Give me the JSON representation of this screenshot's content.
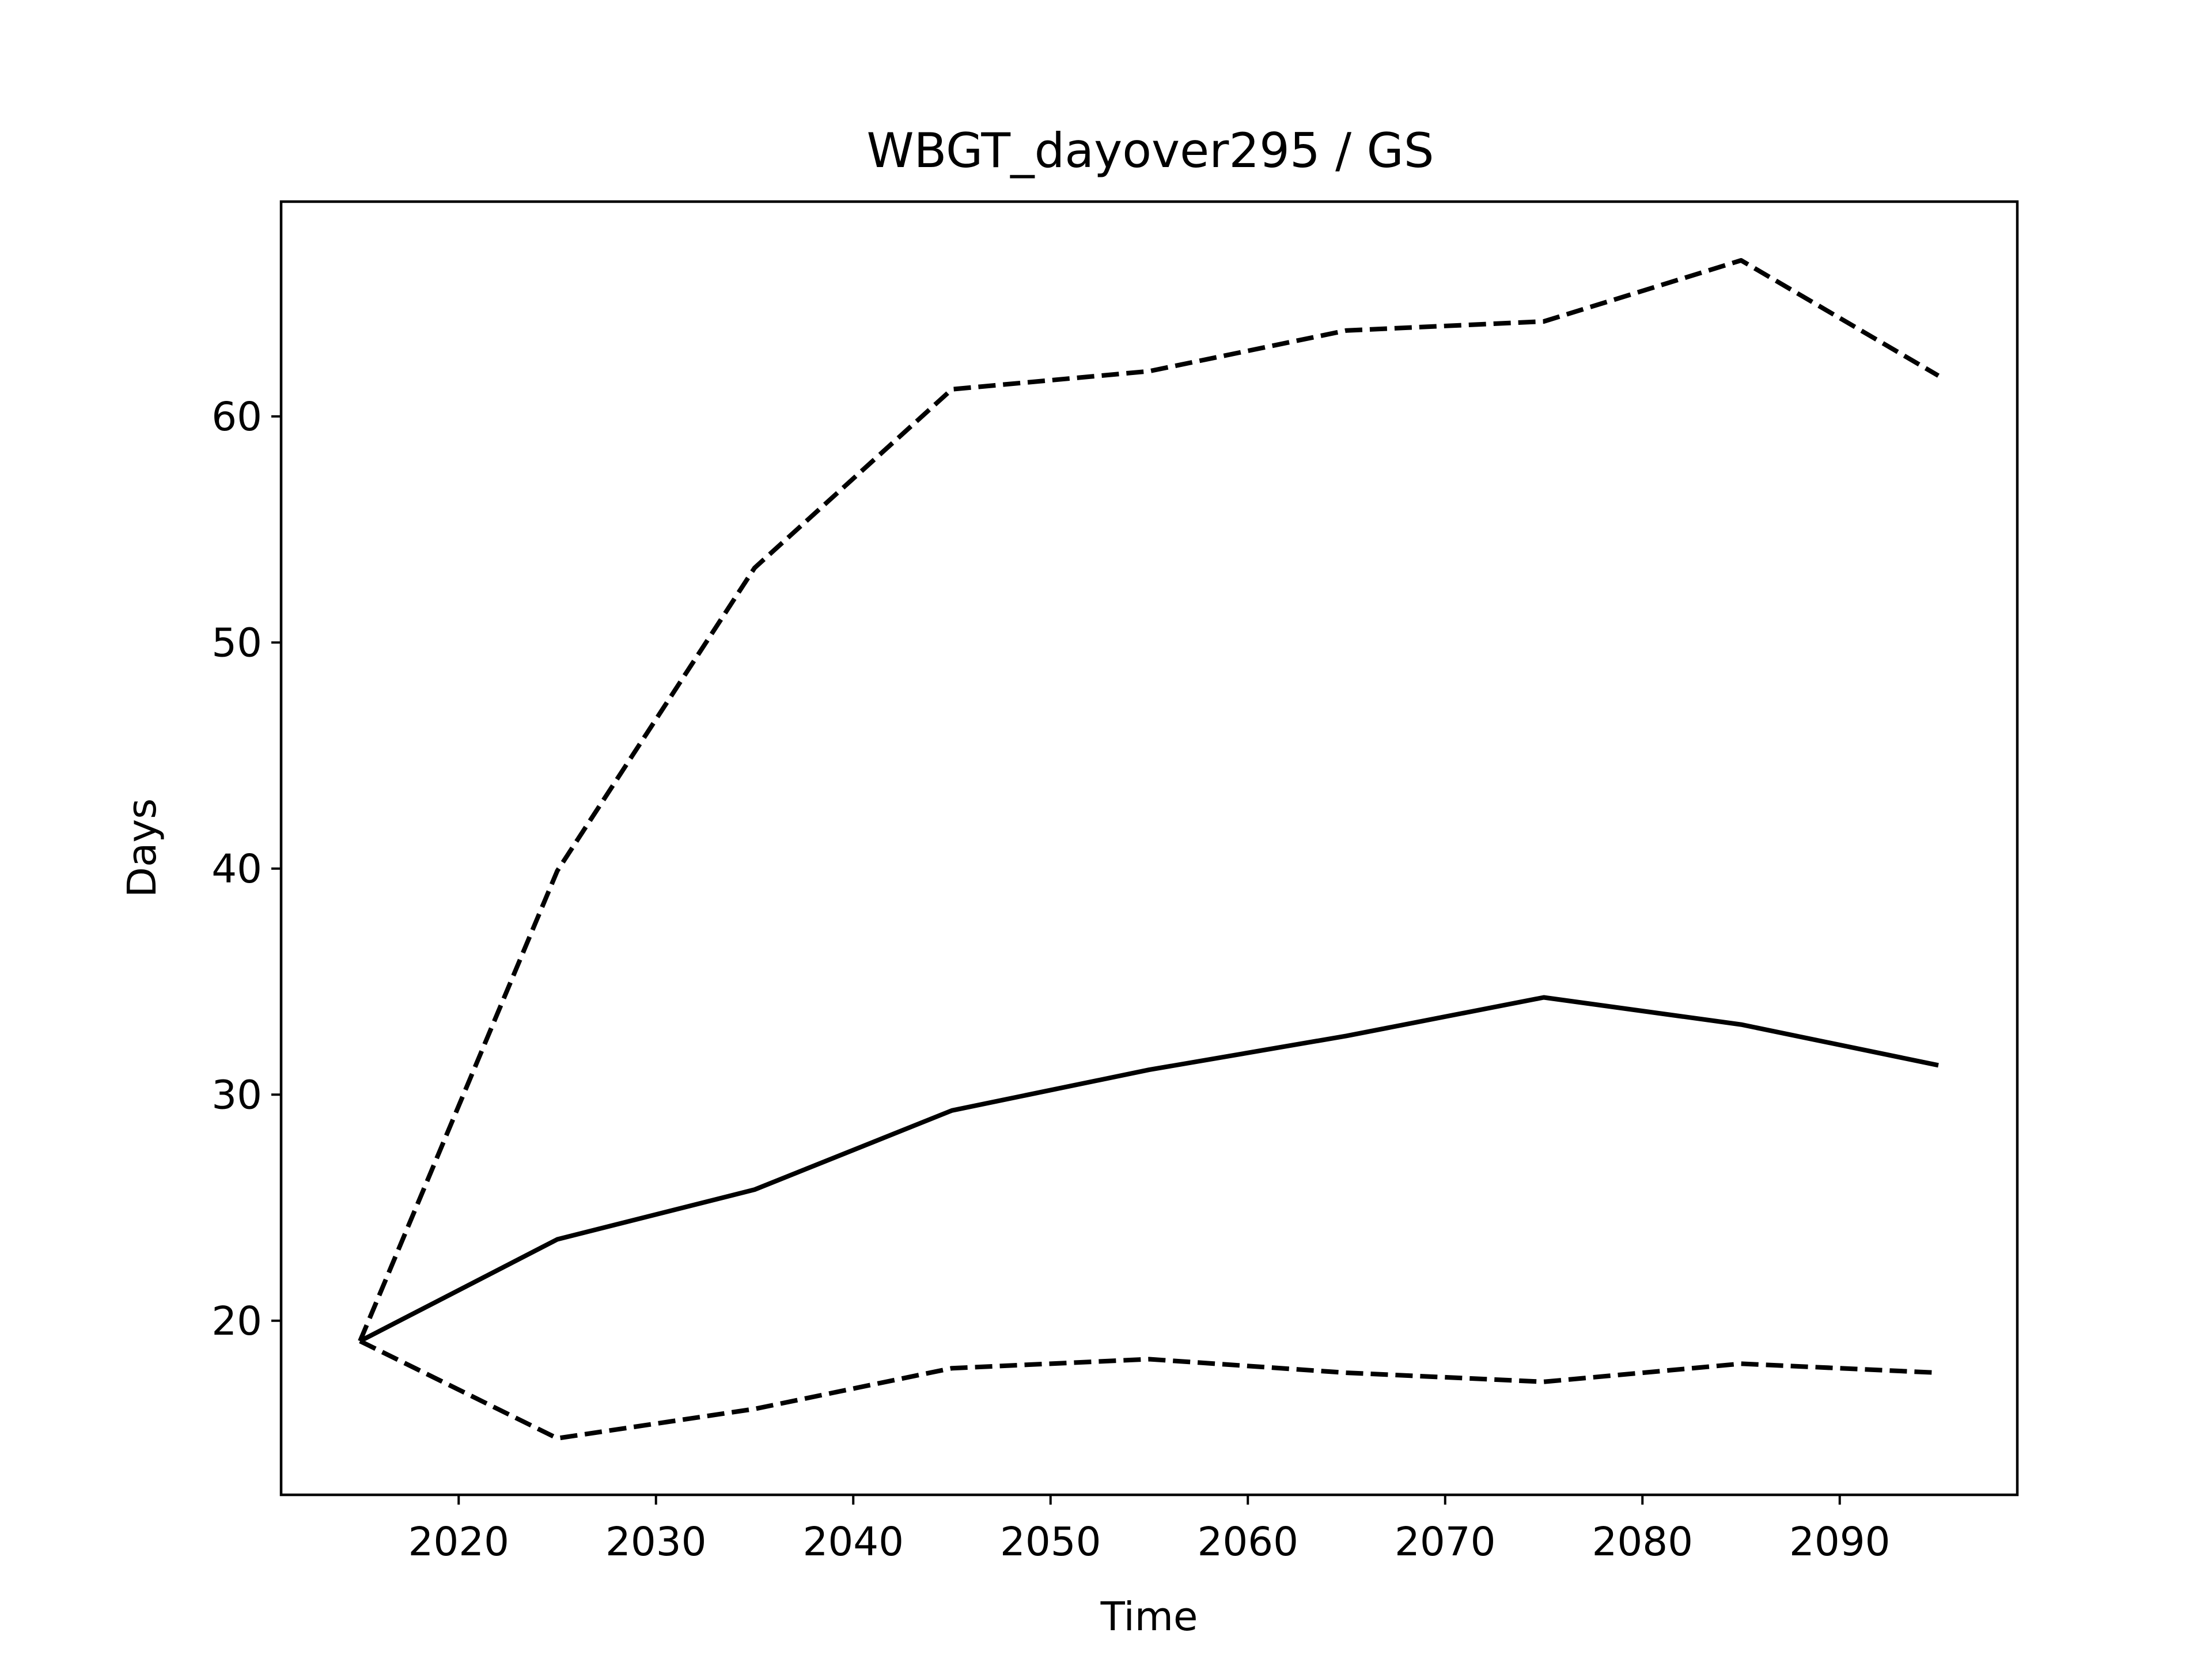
{
  "chart_data": {
    "type": "line",
    "title": "WBGT_dayover295 / GS",
    "xlabel": "Time",
    "ylabel": "Days",
    "xlim": [
      2011,
      2099
    ],
    "ylim": [
      12.3,
      69.5
    ],
    "xticks": [
      2020,
      2030,
      2040,
      2050,
      2060,
      2070,
      2080,
      2090
    ],
    "yticks": [
      20,
      30,
      40,
      50,
      60
    ],
    "grid": false,
    "x": [
      2015,
      2025,
      2035,
      2045,
      2055,
      2065,
      2075,
      2085,
      2095
    ],
    "series": [
      {
        "style": "dashed",
        "color": "#000000",
        "values": [
          19.1,
          39.9,
          53.3,
          61.2,
          62.0,
          63.8,
          64.2,
          66.9,
          61.8
        ]
      },
      {
        "style": "solid",
        "color": "#000000",
        "values": [
          19.1,
          23.6,
          25.8,
          29.3,
          31.1,
          32.6,
          34.3,
          33.1,
          31.3
        ]
      },
      {
        "style": "dashed",
        "color": "#000000",
        "values": [
          19.1,
          14.8,
          16.1,
          17.9,
          18.3,
          17.7,
          17.3,
          18.1,
          17.7
        ]
      }
    ]
  }
}
